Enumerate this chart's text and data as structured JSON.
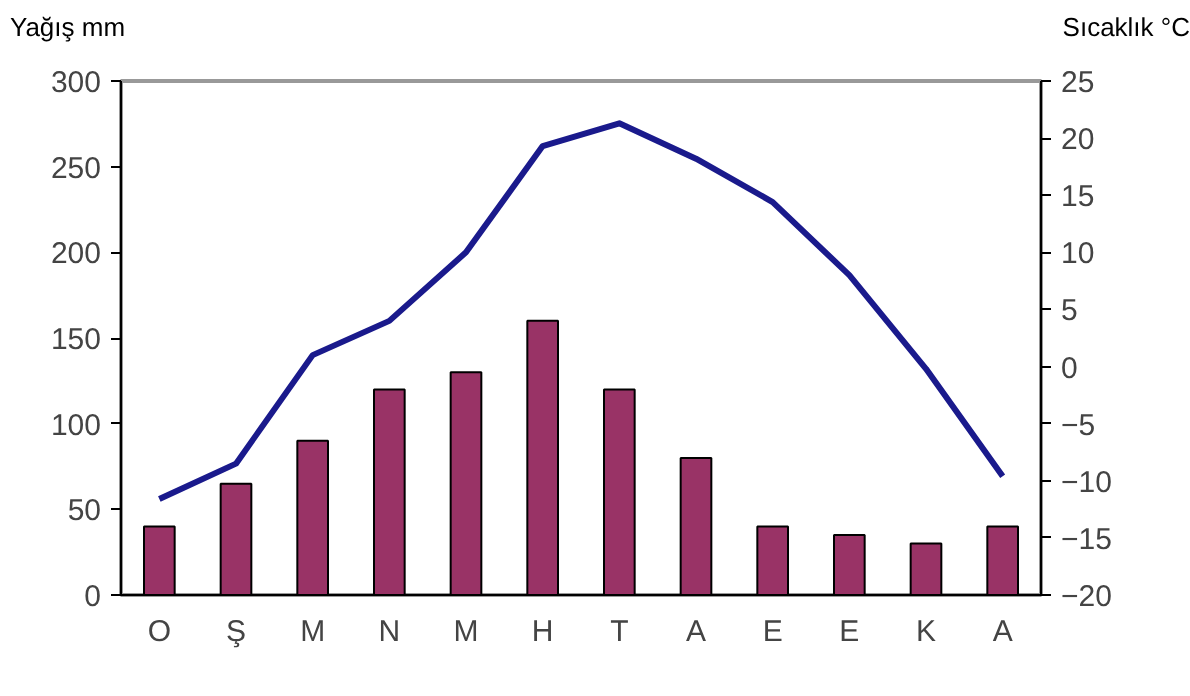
{
  "chart_data": {
    "type": "bar",
    "categories": [
      "O",
      "Ş",
      "M",
      "N",
      "M",
      "H",
      "T",
      "A",
      "E",
      "E",
      "K",
      "A"
    ],
    "ylabel": "Yağış mm",
    "y2label": "Sıcaklık °C",
    "ylim": [
      0,
      300
    ],
    "yticks": [
      0,
      50,
      100,
      150,
      200,
      250,
      300
    ],
    "y2lim": [
      -20,
      25
    ],
    "y2ticks": [
      -20,
      -15,
      -10,
      -5,
      0,
      5,
      10,
      15,
      20,
      25
    ],
    "grid": false,
    "series": [
      {
        "color": "#993366",
        "values": [
          40,
          65,
          90,
          120,
          130,
          160,
          120,
          80,
          40,
          35,
          30,
          40
        ]
      },
      {
        "type": "line",
        "axis": "y2",
        "color": "#1a1a8c",
        "values": [
          -11.6,
          -8.5,
          1,
          4,
          10,
          19.3,
          21.3,
          18.2,
          14.4,
          8,
          -0.2,
          -9.6
        ]
      }
    ]
  }
}
